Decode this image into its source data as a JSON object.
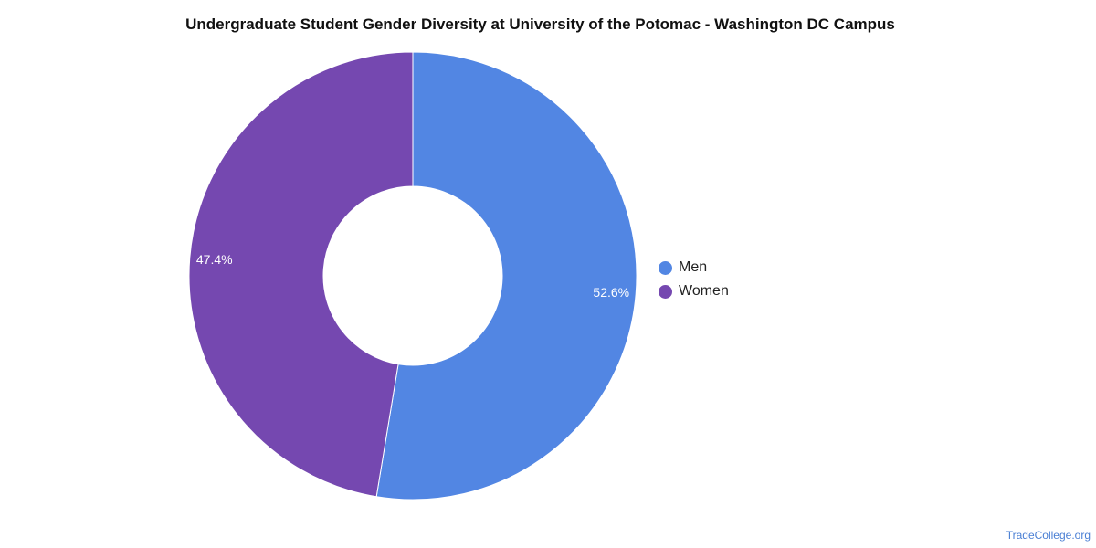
{
  "chart_data": {
    "type": "pie",
    "variant": "donut",
    "title": "Undergraduate Student Gender Diversity at University of the Potomac - Washington DC Campus",
    "categories": [
      "Men",
      "Women"
    ],
    "values": [
      52.6,
      47.4
    ],
    "labels": [
      "52.6%",
      "47.4%"
    ],
    "colors": [
      "#5286e3",
      "#7548b0"
    ],
    "legend_position": "right"
  },
  "watermark": "TradeCollege.org"
}
